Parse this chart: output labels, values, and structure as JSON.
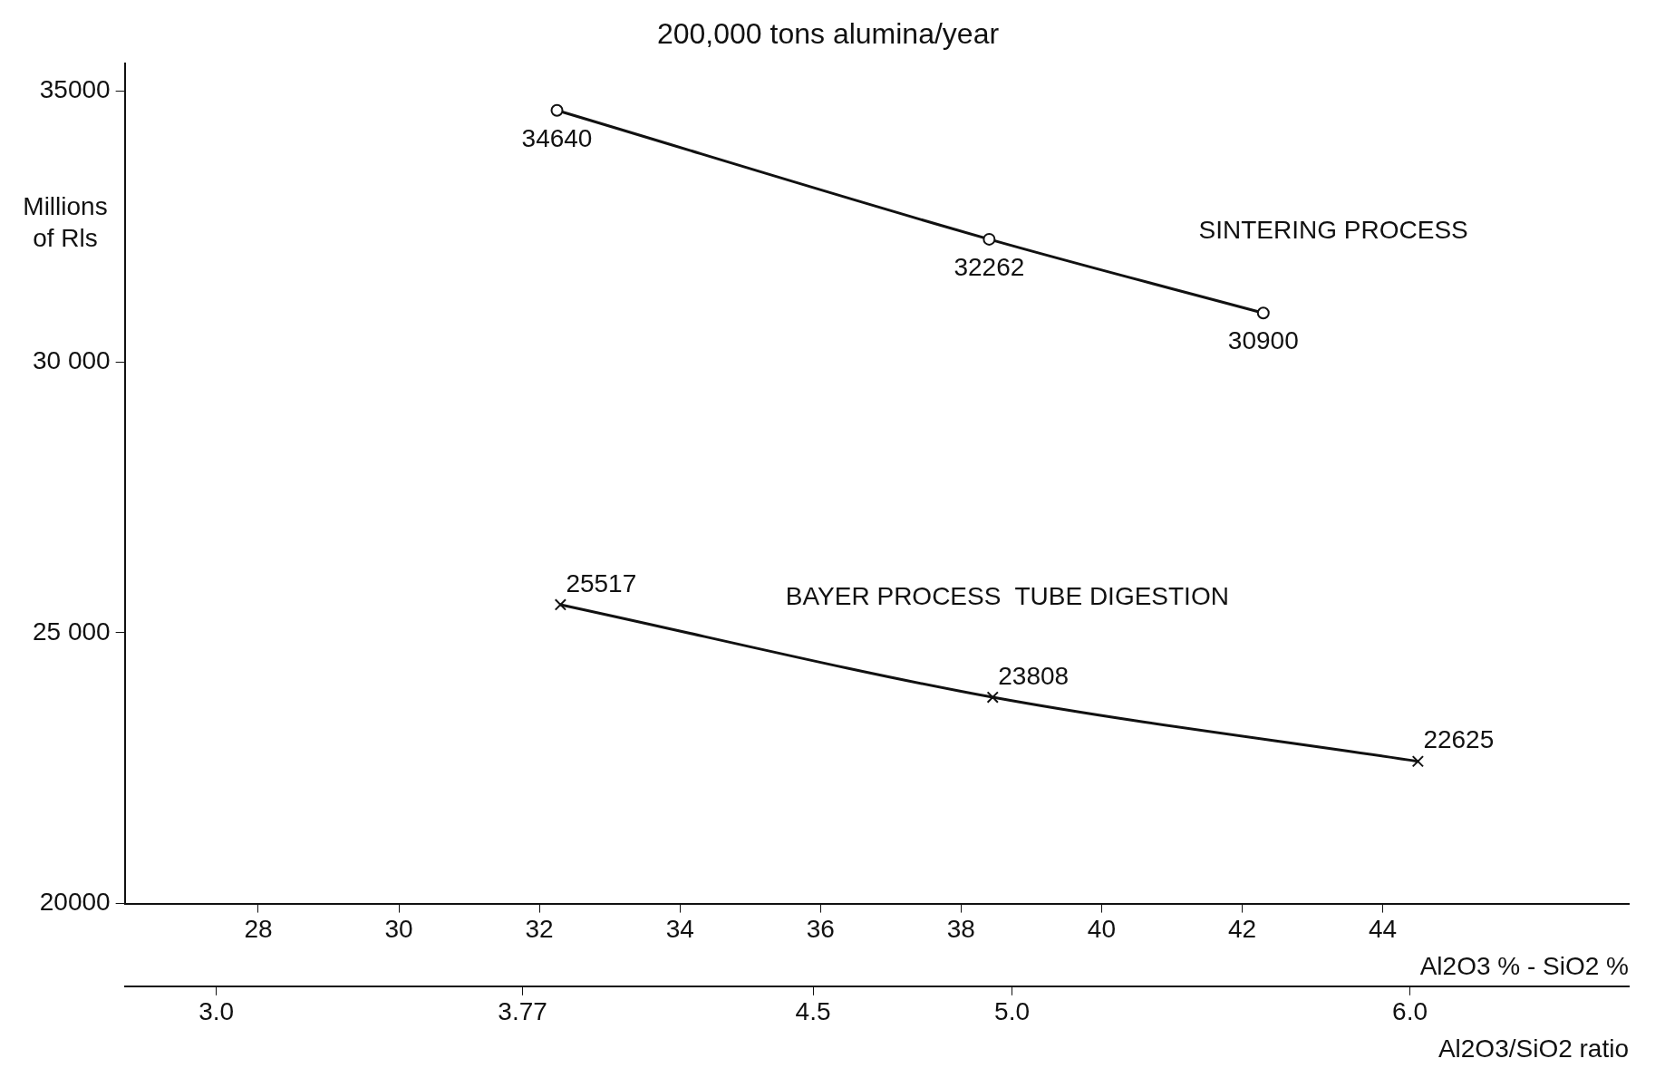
{
  "chart_data": {
    "type": "line",
    "title": "200,000 tons alumina/year",
    "ylabel": "Millions of Rls",
    "xlabel": "Al2O3 % - SiO2 %",
    "x2label": "Al2O3/SiO2 ratio",
    "xlim": [
      26.1,
      47.5
    ],
    "xticks": [
      28,
      30,
      32,
      34,
      36,
      38,
      40,
      42,
      44
    ],
    "x2lim": [
      2.77,
      6.55
    ],
    "x2ticks": [
      {
        "value": 3.0,
        "label": "3.0"
      },
      3.77,
      4.5,
      {
        "value": 5.0,
        "label": "5.0"
      },
      {
        "value": 6.0,
        "label": "6.0"
      }
    ],
    "ylim": [
      20000,
      35500
    ],
    "yticks": [
      20000,
      {
        "value": 25000,
        "label": "25 000"
      },
      {
        "value": 30000,
        "label": "30 000"
      },
      35000
    ],
    "grid": false,
    "legend": false,
    "data_labels": true,
    "line_style": "solid",
    "series": [
      {
        "name": "SINTERING PROCESS",
        "color": "#111111",
        "marker": "circle",
        "x": [
          32.25,
          38.4,
          42.3
        ],
        "values": [
          34640,
          32262,
          30900
        ]
      },
      {
        "name": "BAYER PROCESS  TUBE DIGESTION",
        "color": "#111111",
        "marker": "cross",
        "x": [
          32.3,
          38.45,
          44.5
        ],
        "values": [
          25517,
          23808,
          22625
        ]
      }
    ]
  }
}
